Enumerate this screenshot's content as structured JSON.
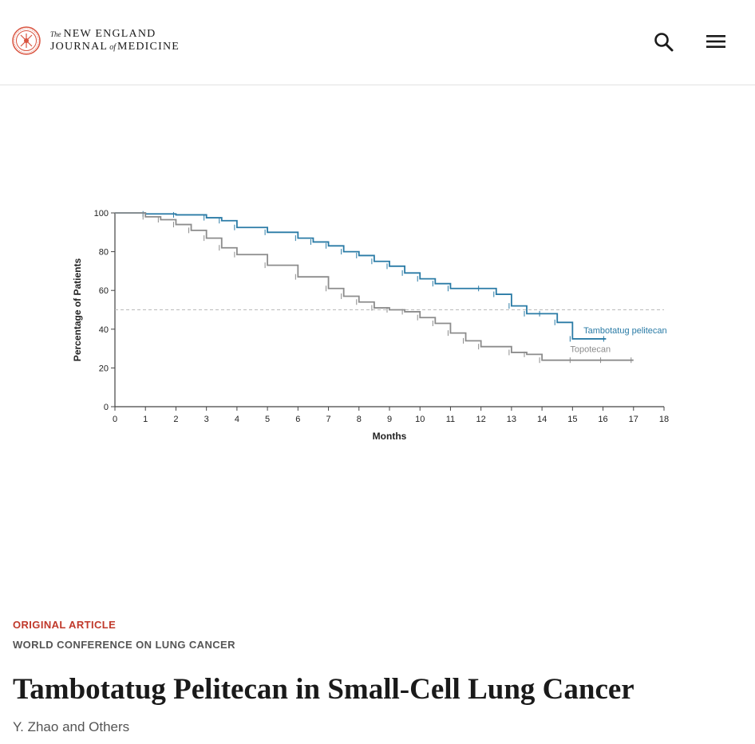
{
  "header": {
    "brand": {
      "the": "The",
      "line1": "NEW ENGLAND",
      "line2_a": "JOURNAL",
      "of": "of",
      "line2_b": "MEDICINE"
    },
    "icons": {
      "logo": "nejm-seal-icon",
      "search": "search-icon",
      "menu": "hamburger-menu-icon"
    },
    "accent_color": "#c0392b"
  },
  "chart_data": {
    "type": "line",
    "title": "",
    "xlabel": "Months",
    "ylabel": "Percentage of Patients",
    "xlim": [
      0,
      18
    ],
    "ylim": [
      0,
      100
    ],
    "x_ticks": [
      0,
      1,
      2,
      3,
      4,
      5,
      6,
      7,
      8,
      9,
      10,
      11,
      12,
      13,
      14,
      15,
      16,
      17,
      18
    ],
    "y_ticks": [
      0,
      20,
      40,
      60,
      80,
      100
    ],
    "grid": false,
    "reference_line_y": 50,
    "series": [
      {
        "name": "Tambotatug pelitecan",
        "color": "#2a7ba6",
        "step": true,
        "x": [
          0,
          1,
          2,
          3,
          3.5,
          4,
          5,
          6,
          6.5,
          7,
          7.5,
          8,
          8.5,
          9,
          9.5,
          10,
          10.5,
          11,
          12,
          12.5,
          13,
          13.5,
          14,
          14.5,
          15,
          16.1
        ],
        "y": [
          100,
          99.5,
          99,
          97.5,
          96,
          92.5,
          90,
          87,
          85,
          83,
          80,
          78,
          75,
          72.5,
          69,
          66,
          63.5,
          61,
          61,
          58,
          52,
          48,
          48,
          43.5,
          35,
          35
        ]
      },
      {
        "name": "Topotecan",
        "color": "#8c8c8c",
        "step": true,
        "x": [
          0,
          1,
          1.5,
          2,
          2.5,
          3,
          3.5,
          4,
          5,
          6,
          7,
          7.5,
          8,
          8.5,
          9,
          9.5,
          10,
          10.5,
          11,
          11.5,
          12,
          13,
          13.5,
          14,
          15,
          16,
          17
        ],
        "y": [
          100,
          98,
          96.5,
          94,
          91,
          87,
          82,
          78.5,
          73,
          67,
          61,
          57,
          54,
          51,
          50,
          49,
          46,
          43,
          38,
          34,
          31,
          28,
          27,
          24,
          24,
          24,
          24
        ]
      }
    ]
  },
  "article": {
    "type_label": "ORIGINAL ARTICLE",
    "conference_label": "WORLD CONFERENCE ON LUNG CANCER",
    "title": "Tambotatug Pelitecan in Small-Cell Lung Cancer",
    "authors": "Y. Zhao and Others"
  }
}
